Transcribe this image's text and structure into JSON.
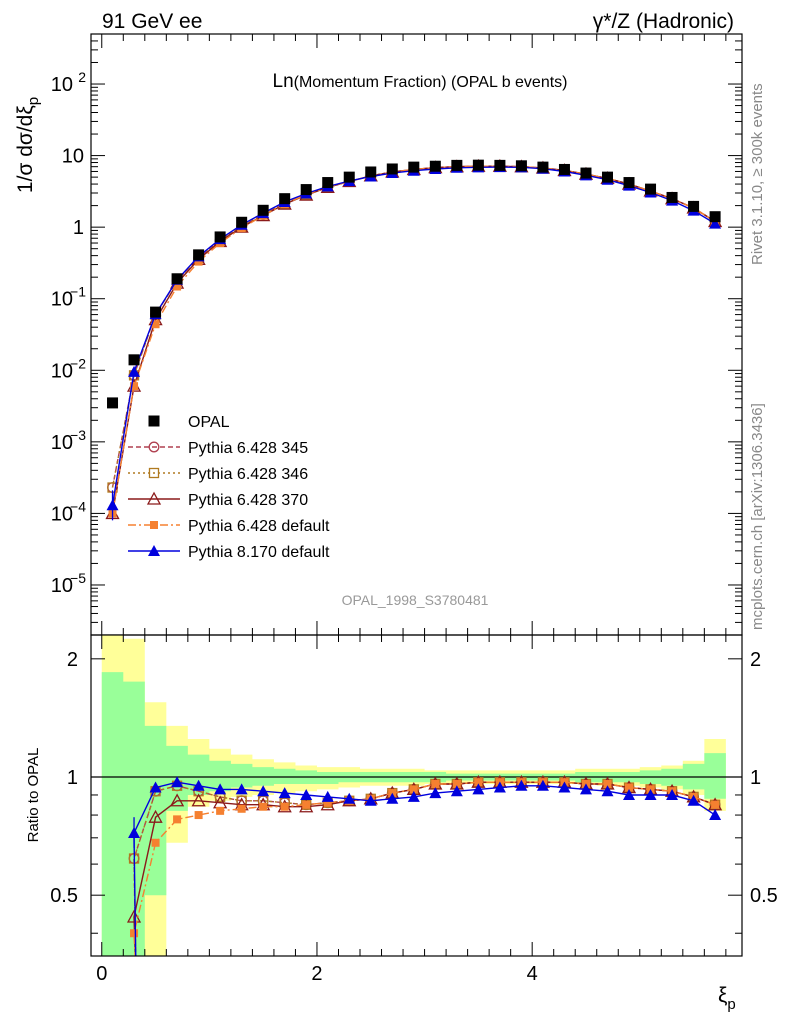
{
  "header": {
    "left": "91 GeV ee",
    "right": "γ*/Z (Hadronic)"
  },
  "side_labels": {
    "rivet": "Rivet 3.1.10, ≥ 300k events",
    "mcplots": "mcplots.cern.ch [arXiv:1306.3436]"
  },
  "watermark": "OPAL_1998_S3780481",
  "colors": {
    "opal": "#000000",
    "p345": "#b04050",
    "p346": "#b07a20",
    "p370": "#8b1a1a",
    "p6def": "#f58030",
    "p8def": "#0000dd",
    "band_inner": "#99ff99",
    "band_outer": "#ffff99"
  },
  "chart_data": [
    {
      "type": "line",
      "title": "Ln(Momentum Fraction) (OPAL b events)",
      "title_main": "Ln",
      "title_sub": "(Momentum Fraction) (OPAL b events)",
      "ylabel": "1/σ dσ/dξ_p",
      "xlabel": "ξ_p",
      "yscale": "log",
      "xlim": [
        -0.1,
        5.95
      ],
      "ylim": [
        2e-06,
        500
      ],
      "legend_placement": "lower-left",
      "x": [
        0.1,
        0.3,
        0.5,
        0.7,
        0.9,
        1.1,
        1.3,
        1.5,
        1.7,
        1.9,
        2.1,
        2.3,
        2.5,
        2.7,
        2.9,
        3.1,
        3.3,
        3.5,
        3.7,
        3.9,
        4.1,
        4.3,
        4.5,
        4.7,
        4.9,
        5.1,
        5.3,
        5.5,
        5.7
      ],
      "series": [
        {
          "name": "OPAL",
          "key": "opal",
          "marker": "square-filled",
          "line": "none",
          "values": [
            0.0035,
            0.014,
            0.065,
            0.19,
            0.41,
            0.73,
            1.17,
            1.72,
            2.5,
            3.35,
            4.2,
            5.0,
            5.9,
            6.5,
            6.9,
            7.1,
            7.3,
            7.35,
            7.3,
            7.2,
            6.9,
            6.4,
            5.7,
            5.0,
            4.2,
            3.4,
            2.6,
            1.95,
            1.4
          ]
        },
        {
          "name": "Pythia 6.428 345",
          "key": "p345",
          "marker": "circle-open",
          "line": "dashed",
          "values": [
            0.00023,
            0.0085,
            0.06,
            0.18,
            0.37,
            0.65,
            1.02,
            1.5,
            2.15,
            2.85,
            3.6,
            4.35,
            5.2,
            5.9,
            6.4,
            6.8,
            7.0,
            7.1,
            7.1,
            7.0,
            6.7,
            6.2,
            5.5,
            4.8,
            4.0,
            3.2,
            2.5,
            1.85,
            1.2
          ]
        },
        {
          "name": "Pythia 6.428 346",
          "key": "p346",
          "marker": "square-open",
          "line": "dotted",
          "values": [
            0.00023,
            0.0085,
            0.06,
            0.18,
            0.37,
            0.65,
            1.02,
            1.5,
            2.15,
            2.85,
            3.6,
            4.35,
            5.2,
            5.9,
            6.4,
            6.8,
            7.0,
            7.1,
            7.1,
            7.0,
            6.7,
            6.2,
            5.5,
            4.8,
            4.0,
            3.2,
            2.5,
            1.85,
            1.2
          ]
        },
        {
          "name": "Pythia 6.428 370",
          "key": "p370",
          "marker": "triangle-open",
          "line": "solid",
          "values": [
            0.0001,
            0.006,
            0.051,
            0.165,
            0.355,
            0.63,
            1.0,
            1.45,
            2.1,
            2.8,
            3.6,
            4.35,
            5.2,
            5.9,
            6.4,
            6.8,
            7.0,
            7.1,
            7.1,
            7.0,
            6.7,
            6.2,
            5.5,
            4.8,
            4.0,
            3.2,
            2.5,
            1.85,
            1.2
          ]
        },
        {
          "name": "Pythia 6.428 default",
          "key": "p6def",
          "marker": "square-filled-small",
          "line": "dashdot",
          "values": [
            0.0001,
            0.006,
            0.044,
            0.148,
            0.33,
            0.6,
            0.97,
            1.45,
            2.1,
            2.85,
            3.6,
            4.35,
            5.2,
            5.9,
            6.4,
            6.8,
            7.0,
            7.1,
            7.1,
            7.0,
            6.7,
            6.2,
            5.5,
            4.8,
            4.0,
            3.2,
            2.5,
            1.85,
            1.2
          ]
        },
        {
          "name": "Pythia 8.170 default",
          "key": "p8def",
          "marker": "triangle-filled",
          "line": "solid",
          "values": [
            0.00013,
            0.0095,
            0.061,
            0.184,
            0.39,
            0.68,
            1.08,
            1.57,
            2.25,
            2.95,
            3.7,
            4.4,
            5.1,
            5.7,
            6.15,
            6.5,
            6.75,
            6.85,
            6.9,
            6.85,
            6.55,
            6.0,
            5.3,
            4.6,
            3.8,
            3.05,
            2.35,
            1.7,
            1.12
          ]
        }
      ]
    },
    {
      "type": "line",
      "ylabel": "Ratio to OPAL",
      "xlabel": "ξ_p",
      "xlim": [
        -0.1,
        5.95
      ],
      "ylim": [
        0.35,
        2.3
      ],
      "yscale": "log",
      "reference": 1,
      "x_ticks": [
        0,
        2,
        4
      ],
      "y_ticks": [
        0.5,
        1,
        2
      ],
      "x_edges": [
        0,
        0.2,
        0.4,
        0.6,
        0.8,
        1.0,
        1.2,
        1.4,
        1.6,
        1.8,
        2.0,
        2.2,
        2.4,
        2.6,
        2.8,
        3.0,
        3.2,
        3.4,
        3.6,
        3.8,
        4.0,
        4.2,
        4.4,
        4.6,
        4.8,
        5.0,
        5.2,
        5.4,
        5.6,
        5.8
      ],
      "band_outer": {
        "lo": [
          0.3,
          0.3,
          0.3,
          0.68,
          0.84,
          0.87,
          0.89,
          0.9,
          0.91,
          0.92,
          0.93,
          0.94,
          0.95,
          0.95,
          0.95,
          0.96,
          0.96,
          0.96,
          0.96,
          0.96,
          0.96,
          0.96,
          0.96,
          0.95,
          0.95,
          0.94,
          0.93,
          0.9,
          0.82
        ],
        "hi": [
          2.35,
          2.25,
          1.55,
          1.35,
          1.25,
          1.18,
          1.14,
          1.11,
          1.09,
          1.07,
          1.06,
          1.06,
          1.05,
          1.05,
          1.05,
          1.04,
          1.04,
          1.04,
          1.04,
          1.04,
          1.04,
          1.04,
          1.05,
          1.05,
          1.05,
          1.06,
          1.07,
          1.1,
          1.25
        ]
      },
      "band_inner": {
        "lo": [
          0.3,
          0.3,
          0.5,
          0.82,
          0.9,
          0.92,
          0.94,
          0.95,
          0.96,
          0.96,
          0.96,
          0.97,
          0.97,
          0.97,
          0.97,
          0.97,
          0.98,
          0.98,
          0.98,
          0.98,
          0.98,
          0.98,
          0.97,
          0.97,
          0.97,
          0.96,
          0.95,
          0.93,
          0.88
        ],
        "hi": [
          1.85,
          1.75,
          1.35,
          1.2,
          1.14,
          1.1,
          1.08,
          1.06,
          1.05,
          1.04,
          1.03,
          1.03,
          1.03,
          1.03,
          1.03,
          1.03,
          1.02,
          1.02,
          1.02,
          1.02,
          1.02,
          1.02,
          1.03,
          1.03,
          1.03,
          1.04,
          1.05,
          1.08,
          1.15
        ]
      },
      "series": [
        {
          "name": "Pythia 6.428 345",
          "key": "p345",
          "marker": "circle-open",
          "line": "dashed",
          "values": [
            null,
            0.62,
            0.92,
            0.95,
            0.92,
            0.89,
            0.87,
            0.87,
            0.86,
            0.85,
            0.86,
            0.87,
            0.88,
            0.91,
            0.93,
            0.96,
            0.96,
            0.97,
            0.97,
            0.97,
            0.97,
            0.97,
            0.96,
            0.96,
            0.94,
            0.93,
            0.92,
            0.89,
            0.85
          ]
        },
        {
          "name": "Pythia 6.428 346",
          "key": "p346",
          "marker": "square-open",
          "line": "dotted",
          "values": [
            null,
            0.62,
            0.92,
            0.95,
            0.92,
            0.89,
            0.87,
            0.87,
            0.86,
            0.85,
            0.86,
            0.87,
            0.88,
            0.91,
            0.93,
            0.96,
            0.96,
            0.97,
            0.97,
            0.97,
            0.97,
            0.97,
            0.96,
            0.96,
            0.94,
            0.93,
            0.92,
            0.89,
            0.85
          ]
        },
        {
          "name": "Pythia 6.428 370",
          "key": "p370",
          "marker": "triangle-open",
          "line": "solid",
          "values": [
            null,
            0.44,
            0.79,
            0.87,
            0.87,
            0.86,
            0.85,
            0.85,
            0.84,
            0.84,
            0.85,
            0.87,
            0.88,
            0.91,
            0.93,
            0.96,
            0.96,
            0.97,
            0.97,
            0.97,
            0.97,
            0.97,
            0.96,
            0.96,
            0.94,
            0.93,
            0.92,
            0.89,
            0.85
          ]
        },
        {
          "name": "Pythia 6.428 default",
          "key": "p6def",
          "marker": "square-filled-small",
          "line": "dashdot",
          "values": [
            null,
            0.4,
            0.68,
            0.78,
            0.8,
            0.82,
            0.83,
            0.84,
            0.84,
            0.85,
            0.86,
            0.87,
            0.88,
            0.91,
            0.93,
            0.96,
            0.96,
            0.97,
            0.97,
            0.97,
            0.97,
            0.97,
            0.96,
            0.96,
            0.94,
            0.93,
            0.92,
            0.89,
            0.85
          ]
        },
        {
          "name": "Pythia 8.170 default",
          "key": "p8def",
          "marker": "triangle-filled",
          "line": "solid",
          "values": [
            null,
            0.72,
            0.94,
            0.97,
            0.95,
            0.93,
            0.93,
            0.92,
            0.91,
            0.9,
            0.89,
            0.88,
            0.87,
            0.88,
            0.89,
            0.91,
            0.92,
            0.93,
            0.94,
            0.95,
            0.95,
            0.94,
            0.93,
            0.92,
            0.9,
            0.9,
            0.9,
            0.87,
            0.8
          ]
        }
      ]
    }
  ]
}
